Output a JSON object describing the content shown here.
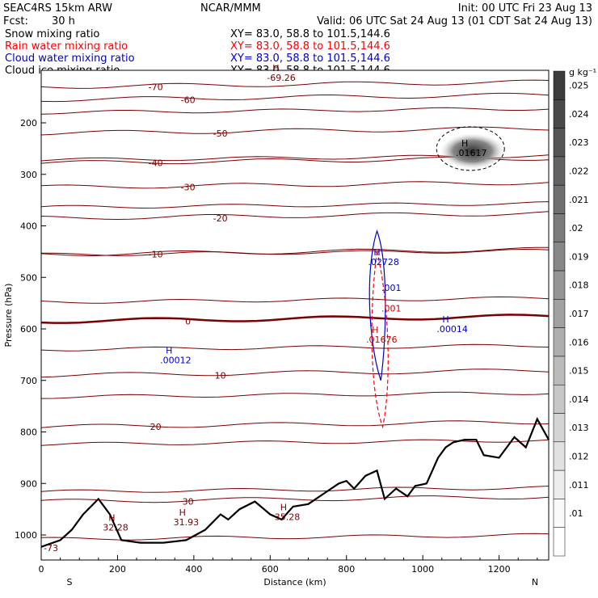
{
  "header": {
    "model": "SEAC4RS 15km ARW",
    "center": "NCAR/MMM",
    "init": "Init: 00 UTC Fri 23 Aug 13",
    "fcst_label": "Fcst:",
    "fcst_value": "30 h",
    "valid": "Valid: 06 UTC Sat 24 Aug 13 (01 CDT Sat 24 Aug 13)"
  },
  "fields": [
    {
      "name": "Snow mixing ratio",
      "xy": "XY=  83.0, 58.8 to 101.5,144.6",
      "color": "#000000"
    },
    {
      "name": "Rain water mixing ratio",
      "xy": "XY=  83.0, 58.8 to 101.5,144.6",
      "color": "#ff0000"
    },
    {
      "name": "Cloud water mixing ratio",
      "xy": "XY=  83.0, 58.8 to 101.5,144.6",
      "color": "#0000cc"
    },
    {
      "name": "Cloud ice mixing ratio",
      "xy": "XY=  83.0, 58.8 to 101.5,144.6",
      "color": "#000000"
    }
  ],
  "chart_data": {
    "type": "cross-section",
    "xlabel": "Distance (km)",
    "ylabel": "Pressure (hPa)",
    "xlim": [
      0,
      1330
    ],
    "ylim": [
      1050,
      100
    ],
    "x_ticks": [
      "0",
      "200",
      "400",
      "600",
      "800",
      "1000",
      "1200"
    ],
    "y_ticks": [
      "200",
      "300",
      "400",
      "500",
      "600",
      "700",
      "800",
      "900",
      "1000"
    ],
    "endpoints": {
      "left": "S",
      "right": "N"
    },
    "colorbar": {
      "unit": "g kg⁻¹",
      "labels": [
        ".025",
        ".024",
        ".023",
        ".022",
        ".021",
        ".02",
        ".019",
        ".018",
        ".017",
        ".016",
        ".015",
        ".014",
        ".013",
        ".012",
        ".011",
        ".01"
      ]
    },
    "temperature_contours": [
      {
        "label": "-70",
        "p": 130
      },
      {
        "label": "-60",
        "p": 155
      },
      {
        "label": "-50",
        "p": 220
      },
      {
        "label": "-40",
        "p": 278
      },
      {
        "label": "-30",
        "p": 325
      },
      {
        "label": "-20",
        "p": 385
      },
      {
        "label": "-10",
        "p": 455
      },
      {
        "label": "0",
        "p": 585,
        "bold": true
      },
      {
        "label": "10",
        "p": 690
      },
      {
        "label": "20",
        "p": 790
      },
      {
        "label": "30",
        "p": 935
      }
    ],
    "annotations": [
      {
        "text": "H",
        "value": ".01617",
        "x": 1095,
        "p": 258,
        "color": "#000000"
      },
      {
        "text": "H",
        "value": ".02728",
        "x": 865,
        "p": 470,
        "color": "#0000cc"
      },
      {
        "text": "",
        "value": ".001",
        "x": 900,
        "p": 520,
        "color": "#0000cc"
      },
      {
        "text": "",
        "value": ".001",
        "x": 900,
        "p": 560,
        "color": "#cc0000"
      },
      {
        "text": "H",
        "value": ".01676",
        "x": 860,
        "p": 620,
        "color": "#cc0000"
      },
      {
        "text": "H",
        "value": ".00014",
        "x": 1045,
        "p": 600,
        "color": "#0000cc"
      },
      {
        "text": "H",
        "value": ".00012",
        "x": 320,
        "p": 660,
        "color": "#0000cc"
      },
      {
        "text": "H",
        "value": "32.28",
        "x": 170,
        "p": 985,
        "color": "#7a0000"
      },
      {
        "text": "H",
        "value": "31.93",
        "x": 355,
        "p": 975,
        "color": "#7a0000"
      },
      {
        "text": "H",
        "value": "35.28",
        "x": 620,
        "p": 965,
        "color": "#7a0000"
      },
      {
        "text": "H",
        "value": "-69.26",
        "x": 600,
        "p": 112,
        "color": "#7a0000"
      },
      {
        "text": "",
        "value": "-73",
        "x": 15,
        "p": 1025,
        "color": "#7a0000"
      }
    ],
    "terrain_p": [
      [
        0,
        1023
      ],
      [
        50,
        1010
      ],
      [
        80,
        990
      ],
      [
        110,
        960
      ],
      [
        150,
        930
      ],
      [
        180,
        960
      ],
      [
        210,
        1010
      ],
      [
        260,
        1015
      ],
      [
        320,
        1015
      ],
      [
        380,
        1010
      ],
      [
        430,
        990
      ],
      [
        470,
        960
      ],
      [
        490,
        970
      ],
      [
        520,
        950
      ],
      [
        560,
        935
      ],
      [
        600,
        960
      ],
      [
        630,
        970
      ],
      [
        660,
        945
      ],
      [
        700,
        940
      ],
      [
        740,
        920
      ],
      [
        780,
        900
      ],
      [
        800,
        895
      ],
      [
        820,
        910
      ],
      [
        850,
        885
      ],
      [
        880,
        875
      ],
      [
        900,
        930
      ],
      [
        930,
        910
      ],
      [
        960,
        925
      ],
      [
        980,
        905
      ],
      [
        1010,
        900
      ],
      [
        1040,
        850
      ],
      [
        1060,
        830
      ],
      [
        1080,
        820
      ],
      [
        1110,
        815
      ],
      [
        1140,
        815
      ],
      [
        1160,
        845
      ],
      [
        1200,
        850
      ],
      [
        1240,
        810
      ],
      [
        1270,
        830
      ],
      [
        1300,
        775
      ],
      [
        1330,
        815
      ]
    ]
  }
}
